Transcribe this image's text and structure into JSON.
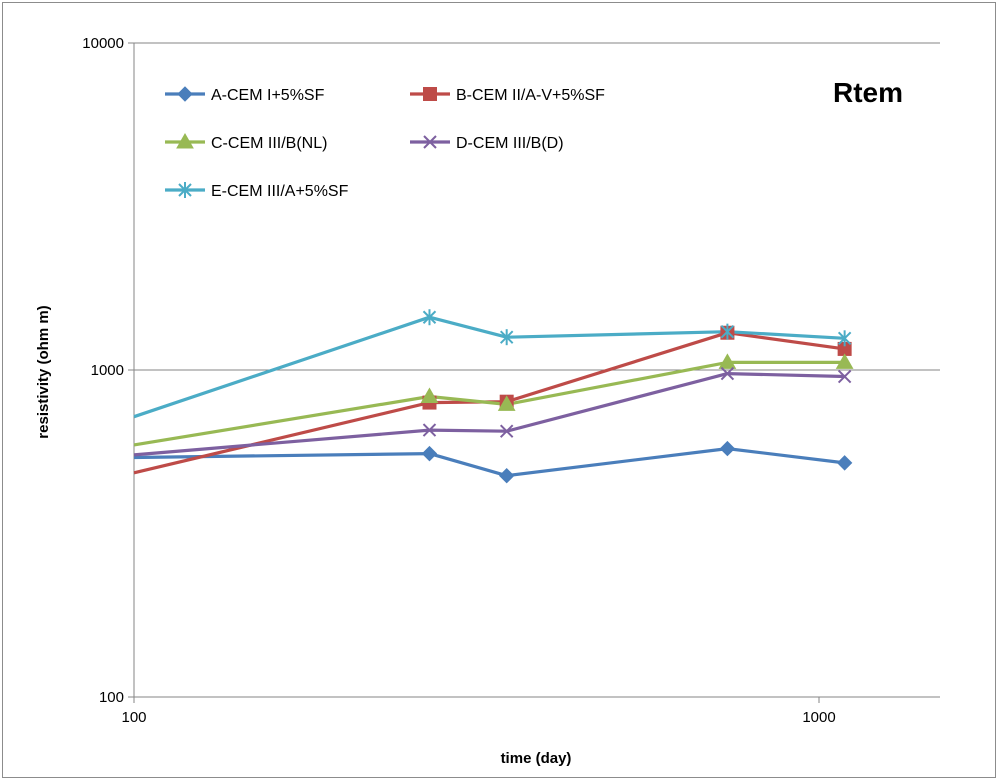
{
  "chart_data": {
    "type": "line",
    "title": "",
    "annotation": "Rtem",
    "xlabel": "time (day)",
    "ylabel": "resistivity (ohm m)",
    "x_scale": "log",
    "y_scale": "log",
    "xlim": [
      100,
      1500
    ],
    "ylim": [
      100,
      10000
    ],
    "x_ticks": [
      100,
      1000
    ],
    "x_tick_labels": [
      "100",
      "1000"
    ],
    "y_ticks": [
      100,
      1000,
      10000
    ],
    "y_tick_labels": [
      "100",
      "1000",
      "10000"
    ],
    "grid": "horizontal major",
    "legend_position": "top-left, inside plot",
    "series": [
      {
        "name": "A-CEM I+5%SF",
        "color": "#4a7ebb",
        "marker": "diamond",
        "x": [
          100,
          270,
          350,
          735,
          1090
        ],
        "y": [
          540,
          555,
          475,
          575,
          520
        ]
      },
      {
        "name": "B-CEM II/A-V+5%SF",
        "color": "#be4b48",
        "marker": "square",
        "x": [
          100,
          270,
          350,
          735,
          1090
        ],
        "y": [
          485,
          795,
          800,
          1300,
          1160
        ]
      },
      {
        "name": "C-CEM III/B(NL)",
        "color": "#98b954",
        "marker": "triangle",
        "x": [
          100,
          270,
          350,
          735,
          1090
        ],
        "y": [
          590,
          830,
          785,
          1055,
          1055
        ]
      },
      {
        "name": "D-CEM III/B(D)",
        "color": "#7d60a0",
        "marker": "x",
        "x": [
          100,
          270,
          350,
          735,
          1090
        ],
        "y": [
          550,
          655,
          650,
          975,
          955
        ]
      },
      {
        "name": "E-CEM III/A+5%SF",
        "color": "#4bacc6",
        "marker": "star",
        "x": [
          100,
          270,
          350,
          735,
          1090
        ],
        "y": [
          720,
          1450,
          1260,
          1310,
          1250
        ]
      }
    ]
  }
}
